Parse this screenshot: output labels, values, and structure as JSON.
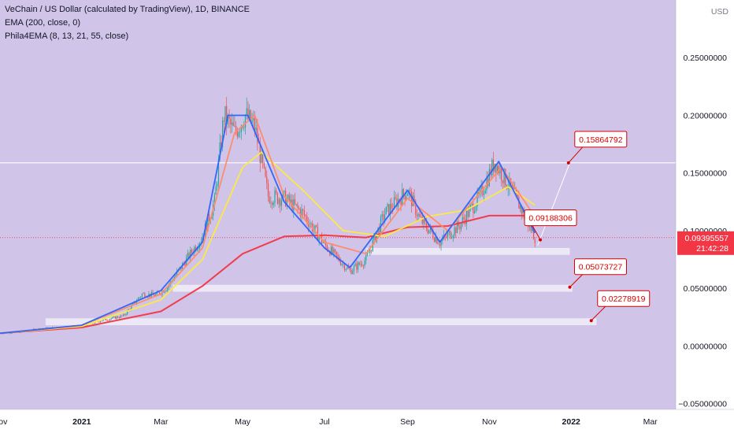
{
  "legend": {
    "title": "VeChain / US Dollar (calculated by TradingView), 1D, BINANCE",
    "ema": "EMA (200, close, 0)",
    "phila": "Phila4EMA (8, 13, 21, 55, close)"
  },
  "chart_data": {
    "type": "candlestick",
    "currency_label": "USD",
    "x_tick_labels": [
      "Nov",
      "2021",
      "Mar",
      "May",
      "Jul",
      "Sep",
      "Nov",
      "2022",
      "Mar"
    ],
    "x_tick_dates": [
      "2020-11-01",
      "2021-01-01",
      "2021-03-01",
      "2021-05-01",
      "2021-07-01",
      "2021-09-01",
      "2021-11-01",
      "2022-01-01",
      "2022-03-01"
    ],
    "y_ticks": [
      0.25,
      0.2,
      0.15,
      0.1,
      0.05,
      0.0,
      -0.05
    ],
    "y_tick_labels": [
      "0.25000000",
      "0.20000000",
      "0.15000000",
      "0.10000000",
      "0.05000000",
      "0.00000000",
      "−0.05000000"
    ],
    "ylim": [
      -0.055,
      0.3
    ],
    "xlim": [
      "2020-11-01",
      "2022-03-20"
    ],
    "current_price": {
      "value": 0.09395557,
      "label": "0.09395557",
      "time": "21:42:28"
    },
    "horizontal_line": 0.1588,
    "support_zones": [
      {
        "y_low": 0.079,
        "y_high": 0.085,
        "x_start": "2021-08-01",
        "x_end": "2021-12-31"
      },
      {
        "y_low": 0.047,
        "y_high": 0.053,
        "x_start": "2021-03-10",
        "x_end": "2022-01-02"
      },
      {
        "y_low": 0.018,
        "y_high": 0.024,
        "x_start": "2020-12-05",
        "x_end": "2022-01-20"
      }
    ],
    "price_callouts": [
      {
        "label": "0.15864792",
        "target_date": "2021-12-30",
        "target_value": 0.1588
      },
      {
        "label": "0.09188306",
        "target_date": "2021-12-09",
        "target_value": 0.092
      },
      {
        "label": "0.05073727",
        "target_date": "2021-12-31",
        "target_value": 0.051
      },
      {
        "label": "0.02278919",
        "target_date": "2022-01-16",
        "target_value": 0.022
      }
    ],
    "projection": [
      {
        "date": "2021-12-07",
        "value": 0.087
      },
      {
        "date": "2021-12-31",
        "value": 0.1588
      }
    ],
    "price_path": [
      [
        "2020-11-01",
        0.011
      ],
      [
        "2020-11-15",
        0.012
      ],
      [
        "2020-12-01",
        0.015
      ],
      [
        "2020-12-15",
        0.016
      ],
      [
        "2021-01-01",
        0.017
      ],
      [
        "2021-01-15",
        0.022
      ],
      [
        "2021-02-01",
        0.026
      ],
      [
        "2021-02-15",
        0.045
      ],
      [
        "2021-02-25",
        0.044
      ],
      [
        "2021-03-05",
        0.05
      ],
      [
        "2021-03-20",
        0.075
      ],
      [
        "2021-04-01",
        0.095
      ],
      [
        "2021-04-10",
        0.125
      ],
      [
        "2021-04-17",
        0.2
      ],
      [
        "2021-04-25",
        0.185
      ],
      [
        "2021-05-03",
        0.2
      ],
      [
        "2021-05-10",
        0.19
      ],
      [
        "2021-05-20",
        0.13
      ],
      [
        "2021-06-01",
        0.128
      ],
      [
        "2021-06-15",
        0.115
      ],
      [
        "2021-07-01",
        0.088
      ],
      [
        "2021-07-20",
        0.065
      ],
      [
        "2021-08-01",
        0.075
      ],
      [
        "2021-08-15",
        0.115
      ],
      [
        "2021-09-01",
        0.135
      ],
      [
        "2021-09-10",
        0.11
      ],
      [
        "2021-09-25",
        0.09
      ],
      [
        "2021-10-10",
        0.105
      ],
      [
        "2021-10-25",
        0.13
      ],
      [
        "2021-11-05",
        0.16
      ],
      [
        "2021-11-20",
        0.13
      ],
      [
        "2021-12-05",
        0.094
      ]
    ],
    "series": [
      {
        "name": "EMA (200, close, 0)",
        "color": "#f23645",
        "points": [
          [
            "2020-11-01",
            0.011
          ],
          [
            "2021-01-01",
            0.016
          ],
          [
            "2021-03-01",
            0.03
          ],
          [
            "2021-04-01",
            0.052
          ],
          [
            "2021-05-01",
            0.08
          ],
          [
            "2021-06-01",
            0.095
          ],
          [
            "2021-07-01",
            0.096
          ],
          [
            "2021-08-01",
            0.094
          ],
          [
            "2021-09-01",
            0.103
          ],
          [
            "2021-10-01",
            0.104
          ],
          [
            "2021-11-01",
            0.113
          ],
          [
            "2021-12-05",
            0.113
          ]
        ]
      },
      {
        "name": "EMA 55",
        "color": "#ffeb3b",
        "points": [
          [
            "2020-11-01",
            0.011
          ],
          [
            "2021-01-01",
            0.017
          ],
          [
            "2021-03-01",
            0.04
          ],
          [
            "2021-04-01",
            0.075
          ],
          [
            "2021-05-01",
            0.155
          ],
          [
            "2021-05-15",
            0.168
          ],
          [
            "2021-06-15",
            0.135
          ],
          [
            "2021-07-15",
            0.1
          ],
          [
            "2021-08-15",
            0.095
          ],
          [
            "2021-09-15",
            0.112
          ],
          [
            "2021-10-15",
            0.118
          ],
          [
            "2021-11-15",
            0.138
          ],
          [
            "2021-12-05",
            0.122
          ]
        ]
      },
      {
        "name": "EMA 21",
        "color": "#ff8a65",
        "points": [
          [
            "2020-11-01",
            0.011
          ],
          [
            "2021-01-01",
            0.018
          ],
          [
            "2021-03-01",
            0.045
          ],
          [
            "2021-04-01",
            0.085
          ],
          [
            "2021-04-25",
            0.185
          ],
          [
            "2021-05-10",
            0.2
          ],
          [
            "2021-06-01",
            0.13
          ],
          [
            "2021-07-01",
            0.09
          ],
          [
            "2021-08-01",
            0.08
          ],
          [
            "2021-09-01",
            0.128
          ],
          [
            "2021-10-01",
            0.1
          ],
          [
            "2021-11-10",
            0.155
          ],
          [
            "2021-12-05",
            0.112
          ]
        ]
      },
      {
        "name": "EMA 8",
        "color": "#2962ff",
        "points": [
          [
            "2020-11-01",
            0.011
          ],
          [
            "2021-01-01",
            0.018
          ],
          [
            "2021-03-01",
            0.048
          ],
          [
            "2021-04-01",
            0.09
          ],
          [
            "2021-04-20",
            0.2
          ],
          [
            "2021-05-05",
            0.2
          ],
          [
            "2021-06-01",
            0.125
          ],
          [
            "2021-07-01",
            0.085
          ],
          [
            "2021-07-20",
            0.068
          ],
          [
            "2021-09-01",
            0.135
          ],
          [
            "2021-09-25",
            0.09
          ],
          [
            "2021-11-08",
            0.16
          ],
          [
            "2021-12-05",
            0.098
          ]
        ]
      }
    ]
  }
}
